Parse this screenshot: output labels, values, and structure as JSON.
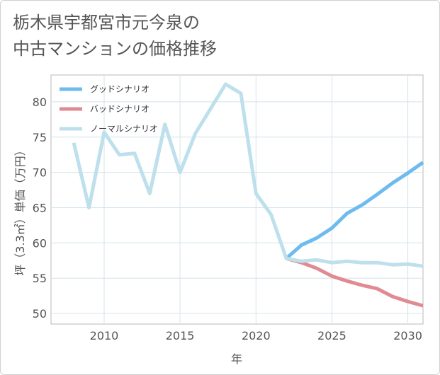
{
  "title_line1": "栃木県宇都宮市元今泉の",
  "title_line2": "中古マンションの価格推移",
  "chart_data": {
    "type": "line",
    "title": "栃木県宇都宮市元今泉の中古マンションの価格推移",
    "xlabel": "年",
    "ylabel": "坪（3.3㎡）単価（万円）",
    "xlim": [
      2006.5,
      2031
    ],
    "ylim": [
      48.5,
      83.8
    ],
    "x_ticks": [
      2010,
      2015,
      2020,
      2025,
      2030
    ],
    "y_ticks": [
      50,
      55,
      60,
      65,
      70,
      75,
      80
    ],
    "legend_position": "top-left",
    "series": [
      {
        "name": "グッドシナリオ",
        "color": "#6ebbee",
        "x": [
          2022,
          2023,
          2024,
          2025,
          2026,
          2027,
          2028,
          2029,
          2030,
          2031
        ],
        "values": [
          57.8,
          59.7,
          60.7,
          62.1,
          64.2,
          65.4,
          66.9,
          68.5,
          69.9,
          71.4
        ]
      },
      {
        "name": "バッドシナリオ",
        "color": "#e08a92",
        "x": [
          2022,
          2023,
          2024,
          2025,
          2026,
          2027,
          2028,
          2029,
          2030,
          2031
        ],
        "values": [
          57.8,
          57.2,
          56.4,
          55.3,
          54.6,
          54.0,
          53.5,
          52.4,
          51.7,
          51.1
        ]
      },
      {
        "name": "ノーマルシナリオ",
        "color": "#bde0ec",
        "x": [
          2008,
          2009,
          2010,
          2011,
          2012,
          2013,
          2014,
          2015,
          2016,
          2017,
          2018,
          2019,
          2020,
          2021,
          2022,
          2023,
          2024,
          2025,
          2026,
          2027,
          2028,
          2029,
          2030,
          2031
        ],
        "values": [
          74.2,
          65.0,
          75.7,
          72.5,
          72.7,
          67.0,
          76.8,
          70.0,
          75.5,
          79.0,
          82.5,
          81.2,
          67.0,
          64.0,
          57.8,
          57.4,
          57.6,
          57.2,
          57.4,
          57.2,
          57.2,
          56.9,
          57.0,
          56.7
        ]
      }
    ]
  }
}
